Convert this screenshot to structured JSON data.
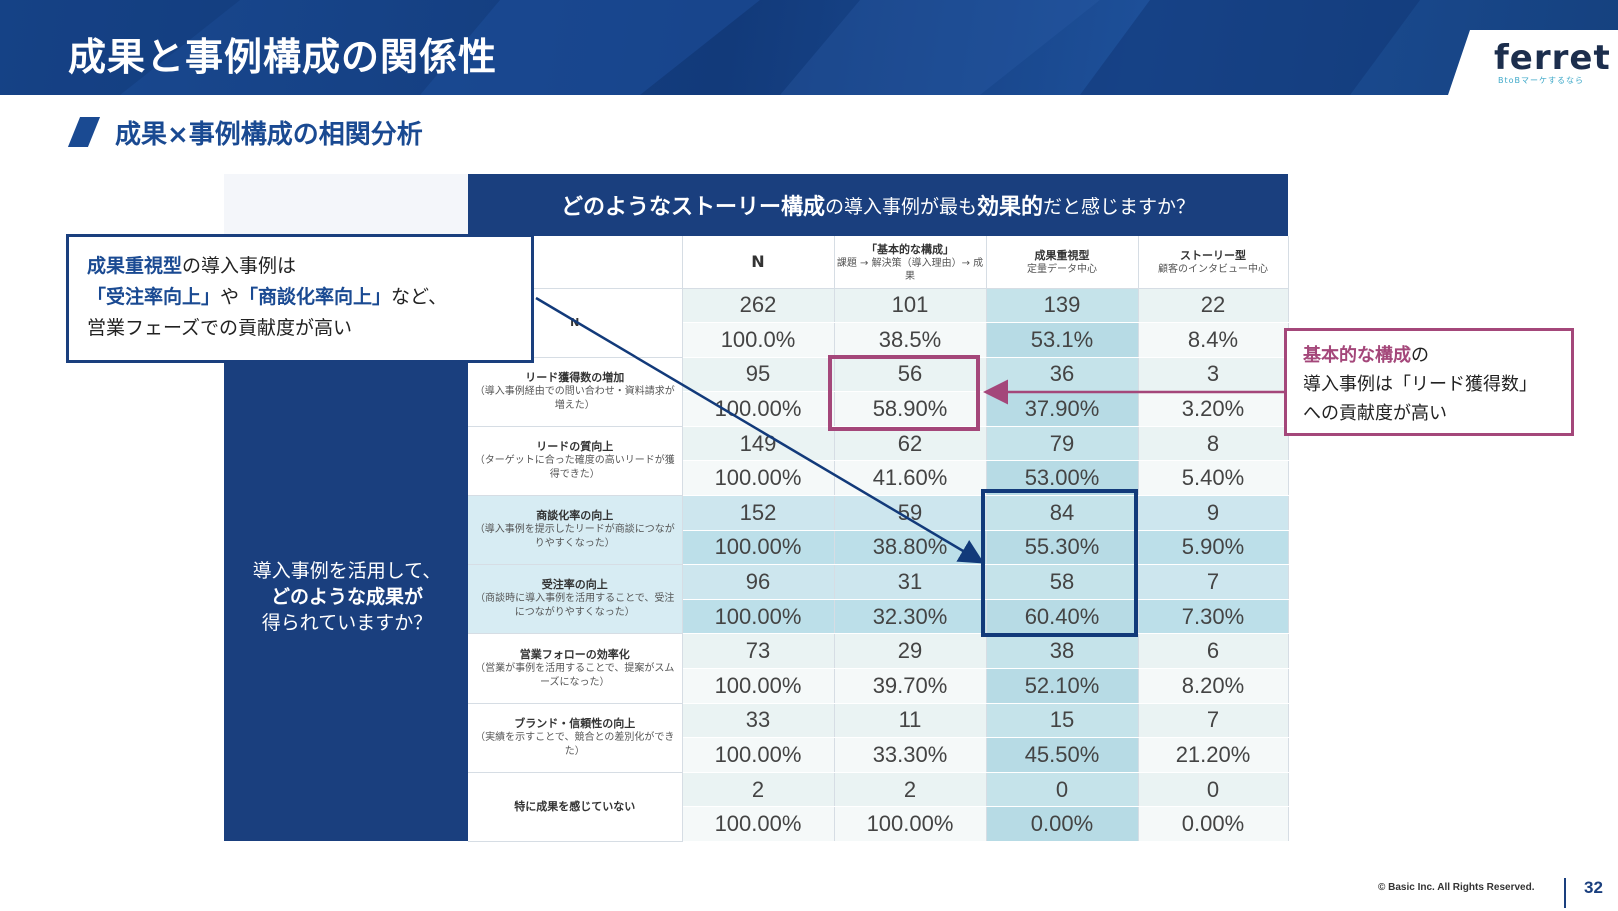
{
  "slide": {
    "title": "成果と事例構成の関係性",
    "subtitle": "成果×事例構成の相関分析",
    "page_number": "32",
    "copyright": "© Basic Inc. All Rights Reserved."
  },
  "logo": {
    "name": "ferret",
    "tagline": "BtoBマーケするなら"
  },
  "table": {
    "question_prefix": "どのようなストーリー構成",
    "question_mid": "の導入事例が最も",
    "question_em": "効果的",
    "question_suffix": "だと感じますか？",
    "left_question_1": "導入事例を活用して、",
    "left_question_2": "どのような成果が",
    "left_question_3": "得られていますか？",
    "columns": [
      {
        "title": "N",
        "sub": ""
      },
      {
        "title": "「基本的な構成」",
        "sub": "課題 → 解決策（導入理由）→ 成果"
      },
      {
        "title": "成果重視型",
        "sub": "定量データ中心"
      },
      {
        "title": "ストーリー型",
        "sub": "顧客のインタビュー中心"
      }
    ],
    "rows": [
      {
        "label": "N",
        "desc": "",
        "counts": [
          "262",
          "101",
          "139",
          "22"
        ],
        "pcts": [
          "100.0%",
          "38.5%",
          "53.1%",
          "8.4%"
        ]
      },
      {
        "label": "リード獲得数の増加",
        "desc": "（導入事例経由での問い合わせ・資料請求が増えた）",
        "counts": [
          "95",
          "56",
          "36",
          "3"
        ],
        "pcts": [
          "100.00%",
          "58.90%",
          "37.90%",
          "3.20%"
        ]
      },
      {
        "label": "リードの質向上",
        "desc": "（ターゲットに合った確度の高いリードが獲得できた）",
        "counts": [
          "149",
          "62",
          "79",
          "8"
        ],
        "pcts": [
          "100.00%",
          "41.60%",
          "53.00%",
          "5.40%"
        ]
      },
      {
        "label": "商談化率の向上",
        "desc": "（導入事例を提示したリードが商談につながりやすくなった）",
        "counts": [
          "152",
          "59",
          "84",
          "9"
        ],
        "pcts": [
          "100.00%",
          "38.80%",
          "55.30%",
          "5.90%"
        ]
      },
      {
        "label": "受注率の向上",
        "desc": "（商談時に導入事例を活用することで、受注につながりやすくなった）",
        "counts": [
          "96",
          "31",
          "58",
          "7"
        ],
        "pcts": [
          "100.00%",
          "32.30%",
          "60.40%",
          "7.30%"
        ]
      },
      {
        "label": "営業フォローの効率化",
        "desc": "（営業が事例を活用することで、提案がスムーズになった）",
        "counts": [
          "73",
          "29",
          "38",
          "6"
        ],
        "pcts": [
          "100.00%",
          "39.70%",
          "52.10%",
          "8.20%"
        ]
      },
      {
        "label": "ブランド・信頼性の向上",
        "desc": "（実績を示すことで、競合との差別化ができた）",
        "counts": [
          "33",
          "11",
          "15",
          "7"
        ],
        "pcts": [
          "100.00%",
          "33.30%",
          "45.50%",
          "21.20%"
        ]
      },
      {
        "label": "特に成果を感じていない",
        "desc": "",
        "counts": [
          "2",
          "2",
          "0",
          "0"
        ],
        "pcts": [
          "100.00%",
          "100.00%",
          "0.00%",
          "0.00%"
        ]
      }
    ]
  },
  "callout_left": {
    "em1": "成果重視型",
    "t1": "の導入事例は",
    "em2": "「受注率向上」",
    "t2": "や",
    "em3": "「商談化率向上」",
    "t3": "など、",
    "line3": "営業フェーズでの貢献度が高い"
  },
  "callout_right": {
    "em": "基本的な構成",
    "t1": "の",
    "line2": "導入事例は「リード獲得数」",
    "line3": "への貢献度が高い"
  },
  "colors": {
    "navy": "#1a3f7e",
    "magenta": "#a4477a",
    "highlight": "#bcdfe9"
  }
}
